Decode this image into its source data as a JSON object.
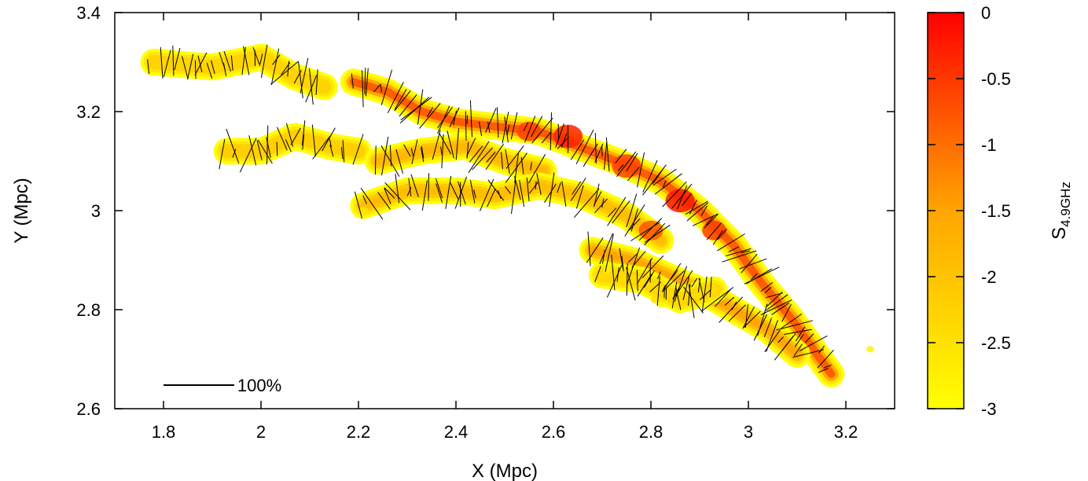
{
  "chart_data": {
    "type": "heatmap",
    "title": "",
    "xlabel": "X (Mpc)",
    "ylabel": "Y (Mpc)",
    "xlim": [
      1.7,
      3.3
    ],
    "ylim": [
      2.6,
      3.4
    ],
    "xticks": [
      "1.8",
      "2",
      "2.2",
      "2.4",
      "2.6",
      "2.8",
      "3",
      "3.2"
    ],
    "yticks": [
      "2.6",
      "2.8",
      "3",
      "3.2",
      "3.4"
    ],
    "colorbar": {
      "label_main": "S",
      "label_sub": "4.9GHz",
      "range": [
        -3,
        0
      ],
      "ticks": [
        "0",
        "-0.5",
        "-1",
        "-1.5",
        "-2",
        "-2.5",
        "-3"
      ],
      "colors": [
        "#ffff00",
        "#ff0000"
      ]
    },
    "scale_bar": {
      "label": "100%",
      "length_x": 0.145
    },
    "grid": false,
    "relic_arcs": [
      {
        "points": [
          [
            1.78,
            3.3
          ],
          [
            1.9,
            3.29
          ],
          [
            2.0,
            3.31
          ],
          [
            2.07,
            3.27
          ],
          [
            2.13,
            3.25
          ]
        ],
        "intensity": -2.3
      },
      {
        "points": [
          [
            1.93,
            3.12
          ],
          [
            2.0,
            3.12
          ],
          [
            2.07,
            3.15
          ],
          [
            2.14,
            3.13
          ],
          [
            2.2,
            3.12
          ]
        ],
        "intensity": -2.2
      },
      {
        "points": [
          [
            2.19,
            3.26
          ],
          [
            2.26,
            3.24
          ],
          [
            2.33,
            3.2
          ],
          [
            2.4,
            3.18
          ],
          [
            2.48,
            3.17
          ],
          [
            2.57,
            3.16
          ],
          [
            2.65,
            3.13
          ],
          [
            2.73,
            3.1
          ],
          [
            2.82,
            3.06
          ],
          [
            2.9,
            3.0
          ],
          [
            2.97,
            2.93
          ],
          [
            3.03,
            2.85
          ],
          [
            3.09,
            2.78
          ],
          [
            3.14,
            2.71
          ],
          [
            3.17,
            2.67
          ]
        ],
        "intensity": -0.8
      },
      {
        "points": [
          [
            2.24,
            3.1
          ],
          [
            2.33,
            3.12
          ],
          [
            2.42,
            3.13
          ],
          [
            2.5,
            3.1
          ],
          [
            2.58,
            3.08
          ]
        ],
        "intensity": -1.8
      },
      {
        "points": [
          [
            2.21,
            3.01
          ],
          [
            2.3,
            3.04
          ],
          [
            2.4,
            3.04
          ],
          [
            2.48,
            3.03
          ],
          [
            2.57,
            3.05
          ],
          [
            2.66,
            3.03
          ],
          [
            2.75,
            2.99
          ],
          [
            2.82,
            2.94
          ]
        ],
        "intensity": -1.9
      },
      {
        "points": [
          [
            2.68,
            2.92
          ],
          [
            2.76,
            2.9
          ],
          [
            2.83,
            2.87
          ],
          [
            2.9,
            2.84
          ],
          [
            2.97,
            2.8
          ],
          [
            3.04,
            2.76
          ],
          [
            3.1,
            2.71
          ]
        ],
        "intensity": -1.5
      },
      {
        "points": [
          [
            2.7,
            2.87
          ],
          [
            2.78,
            2.86
          ],
          [
            2.86,
            2.82
          ],
          [
            2.93,
            2.84
          ]
        ],
        "intensity": -2.4
      }
    ],
    "relic_blobs": [
      {
        "x": 2.55,
        "y": 3.16,
        "r": 0.025,
        "intensity": -0.6
      },
      {
        "x": 2.63,
        "y": 3.15,
        "r": 0.03,
        "intensity": -0.3
      },
      {
        "x": 2.75,
        "y": 3.09,
        "r": 0.03,
        "intensity": -0.6
      },
      {
        "x": 2.86,
        "y": 3.02,
        "r": 0.03,
        "intensity": -0.2
      },
      {
        "x": 2.93,
        "y": 2.96,
        "r": 0.025,
        "intensity": -0.6
      },
      {
        "x": 2.8,
        "y": 2.96,
        "r": 0.025,
        "intensity": -0.8
      },
      {
        "x": 3.25,
        "y": 2.72,
        "r": 0.008,
        "intensity": -2.8
      },
      {
        "x": 2.81,
        "y": 2.82,
        "r": 0.01,
        "intensity": -2.5
      },
      {
        "x": 2.82,
        "y": 2.81,
        "r": 0.008,
        "intensity": -2.9
      },
      {
        "x": 2.71,
        "y": 2.88,
        "r": 0.008,
        "intensity": -2.8
      },
      {
        "x": 2.21,
        "y": 3.0,
        "r": 0.01,
        "intensity": -2.6
      }
    ]
  }
}
